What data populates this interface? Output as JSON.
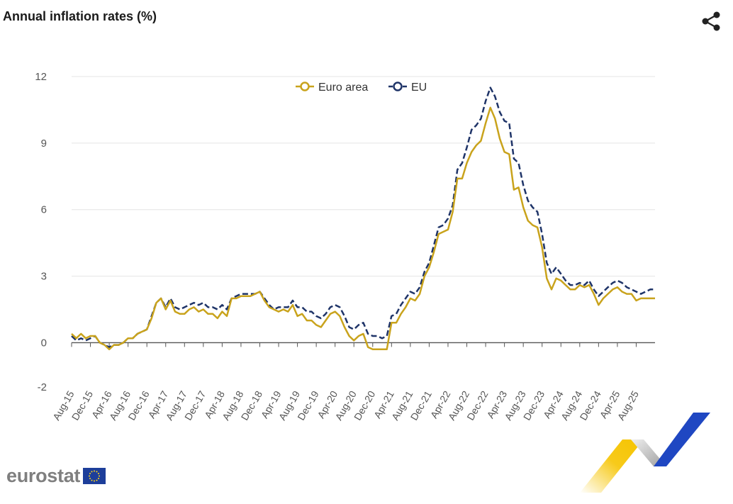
{
  "header": {
    "title": "Annual inflation rates (%)",
    "share_icon": "share-icon"
  },
  "footer": {
    "brand_text": "eurostat",
    "flag_icon": "eu-flag-icon"
  },
  "colors": {
    "euro_area": "#c9a31c",
    "eu": "#1f3468",
    "grid": "#e4e4e4",
    "axis": "#555555",
    "text": "#555555"
  },
  "chart_data": {
    "type": "line",
    "title": "Annual inflation rates (%)",
    "xlabel": "",
    "ylabel": "",
    "ylim": [
      -2,
      12
    ],
    "y_ticks": [
      -2,
      0,
      3,
      6,
      9,
      12
    ],
    "grid": true,
    "legend_position": "top-center",
    "x_start": "Aug-15",
    "x_ticks": [
      "Aug-15",
      "Dec-15",
      "Apr-16",
      "Aug-16",
      "Dec-16",
      "Apr-17",
      "Aug-17",
      "Dec-17",
      "Apr-18",
      "Aug-18",
      "Dec-18",
      "Apr-19",
      "Aug-19",
      "Dec-19",
      "Apr-20",
      "Aug-20",
      "Dec-20",
      "Apr-21",
      "Aug-21",
      "Dec-21",
      "Apr-22",
      "Aug-22",
      "Dec-22",
      "Apr-23",
      "Aug-23",
      "Dec-23",
      "Apr-24",
      "Aug-24",
      "Dec-24",
      "Apr-25",
      "Aug-25"
    ],
    "series": [
      {
        "name": "Euro area",
        "style": "solid",
        "values": [
          0.4,
          0.2,
          0.4,
          0.2,
          0.3,
          0.3,
          0.0,
          -0.1,
          -0.3,
          -0.1,
          -0.1,
          0.0,
          0.2,
          0.2,
          0.4,
          0.5,
          0.6,
          1.1,
          1.8,
          2.0,
          1.5,
          1.9,
          1.4,
          1.3,
          1.3,
          1.5,
          1.6,
          1.4,
          1.5,
          1.3,
          1.3,
          1.1,
          1.4,
          1.2,
          2.0,
          2.0,
          2.1,
          2.1,
          2.1,
          2.2,
          2.3,
          1.9,
          1.6,
          1.5,
          1.4,
          1.5,
          1.4,
          1.7,
          1.2,
          1.3,
          1.0,
          1.0,
          0.8,
          0.7,
          1.0,
          1.3,
          1.4,
          1.2,
          0.7,
          0.3,
          0.1,
          0.3,
          0.4,
          -0.2,
          -0.3,
          -0.3,
          -0.3,
          -0.3,
          0.9,
          0.9,
          1.3,
          1.6,
          2.0,
          1.9,
          2.2,
          3.0,
          3.4,
          4.1,
          4.9,
          5.0,
          5.1,
          5.9,
          7.4,
          7.4,
          8.1,
          8.6,
          8.9,
          9.1,
          9.9,
          10.6,
          10.1,
          9.2,
          8.6,
          8.5,
          6.9,
          7.0,
          6.1,
          5.5,
          5.3,
          5.2,
          4.3,
          2.9,
          2.4,
          2.9,
          2.8,
          2.6,
          2.4,
          2.4,
          2.6,
          2.5,
          2.6,
          2.2,
          1.7,
          2.0,
          2.2,
          2.4,
          2.5,
          2.3,
          2.2,
          2.2,
          1.9,
          2.0,
          2.0,
          2.0,
          2.0
        ]
      },
      {
        "name": "EU",
        "style": "dashed",
        "values": [
          0.3,
          0.1,
          0.2,
          0.1,
          0.2,
          0.3,
          0.0,
          -0.1,
          -0.2,
          -0.1,
          -0.1,
          0.0,
          0.2,
          0.2,
          0.4,
          0.5,
          0.6,
          1.2,
          1.8,
          2.0,
          1.6,
          2.0,
          1.6,
          1.5,
          1.6,
          1.7,
          1.8,
          1.7,
          1.8,
          1.6,
          1.6,
          1.5,
          1.7,
          1.5,
          2.0,
          2.1,
          2.2,
          2.2,
          2.2,
          2.2,
          2.3,
          2.0,
          1.7,
          1.5,
          1.6,
          1.6,
          1.6,
          1.9,
          1.6,
          1.6,
          1.4,
          1.4,
          1.2,
          1.1,
          1.3,
          1.6,
          1.7,
          1.6,
          1.2,
          0.7,
          0.6,
          0.8,
          0.9,
          0.4,
          0.3,
          0.3,
          0.2,
          0.3,
          1.2,
          1.3,
          1.7,
          2.0,
          2.3,
          2.2,
          2.5,
          3.2,
          3.6,
          4.4,
          5.2,
          5.3,
          5.6,
          6.2,
          7.8,
          8.1,
          8.8,
          9.6,
          9.8,
          10.1,
          10.9,
          11.5,
          11.1,
          10.4,
          10.0,
          9.9,
          8.3,
          8.1,
          7.1,
          6.4,
          6.1,
          5.9,
          4.9,
          3.6,
          3.1,
          3.4,
          3.1,
          2.8,
          2.6,
          2.6,
          2.7,
          2.6,
          2.8,
          2.4,
          2.1,
          2.3,
          2.5,
          2.7,
          2.8,
          2.7,
          2.5,
          2.4,
          2.3,
          2.2,
          2.3,
          2.4,
          2.4
        ]
      }
    ]
  }
}
